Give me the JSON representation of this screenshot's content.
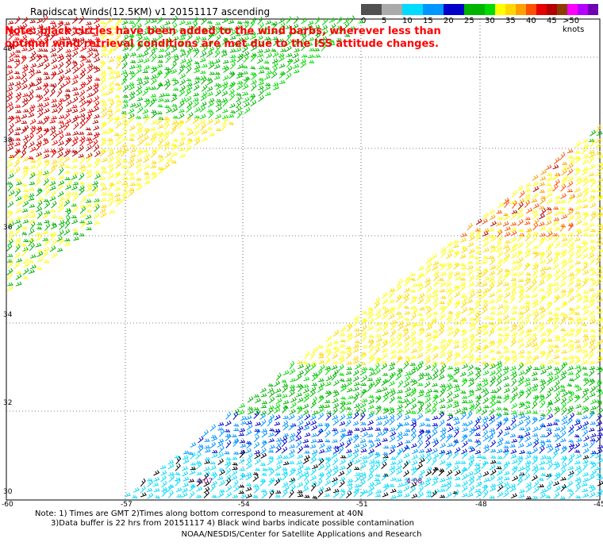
{
  "header": {
    "title": "Rapidscat Winds(12.5KM) v1 20151117 ascending",
    "note": "Note: black circles have been added to the wind barbs, wherever less than optimal wind retrieval conditions are met due to the ISS attitude changes."
  },
  "legend": {
    "colors": [
      "#505050",
      "#aaaaaa",
      "#00dcff",
      "#0096ff",
      "#0000c8",
      "#00b400",
      "#00dc00",
      "#ffff00",
      "#ffd700",
      "#ffa000",
      "#ff5000",
      "#e60000",
      "#b40000",
      "#8c3c00",
      "#ff00ff",
      "#b400ff",
      "#6e00b4"
    ],
    "labels": [
      "0",
      "5",
      "10",
      "15",
      "20",
      "25",
      "30",
      "35",
      "40",
      "45",
      ">50 knots"
    ],
    "label_positions": [
      0,
      1,
      3,
      5,
      7,
      9,
      11,
      13,
      15,
      16,
      17
    ]
  },
  "map": {
    "lat_labels": [
      "40",
      "38",
      "36",
      "34",
      "32",
      "30"
    ],
    "lon_labels": [
      "-60",
      "-57",
      "-54",
      "-51",
      "-48",
      "-45"
    ],
    "time_labels": [
      "4:07",
      "4:08"
    ]
  },
  "footer": {
    "note_line1": "Note: 1) Times are GMT 2)Times along bottom correspond to measurement at 40N",
    "note_line2": "3)Data buffer is 22 hrs from 20151117 4) Black wind barbs indicate possible contamination",
    "credit": "NOAA/NESDIS/Center for Satellite Applications and Research"
  }
}
